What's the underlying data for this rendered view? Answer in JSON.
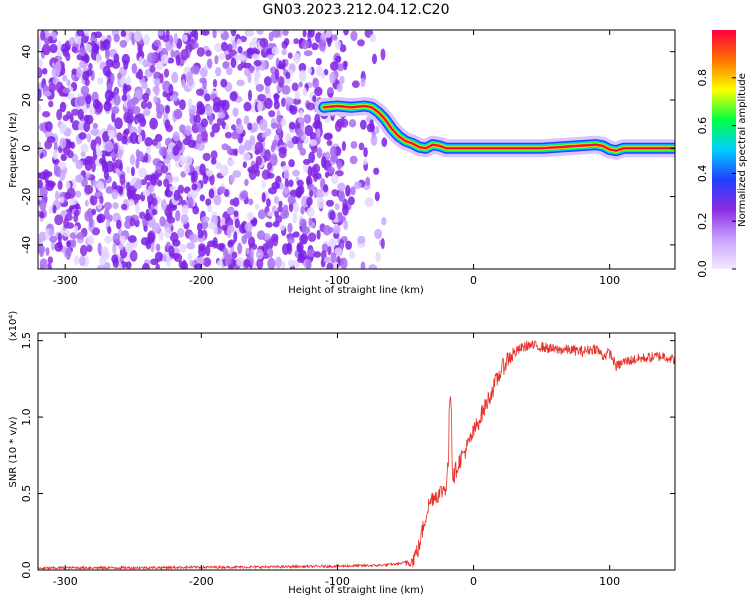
{
  "title": "GN03.2023.212.04.12.C20",
  "colors": {
    "snr_line": "#e8302a",
    "axes": "#000000"
  },
  "chart_data": [
    {
      "type": "heatmap",
      "xlabel": "Height of straight line (km)",
      "ylabel": "Frequency (Hz)",
      "xlim": [
        -320,
        148
      ],
      "ylim": [
        -50,
        49
      ],
      "xticks": [
        -300,
        -200,
        -100,
        0,
        100
      ],
      "yticks": [
        -40,
        -20,
        0,
        20,
        40
      ],
      "colorbar": {
        "label": "Normalized spectral amplitude",
        "range": [
          0.0,
          1.0
        ],
        "ticks": [
          "0.0",
          "0.2",
          "0.4",
          "0.6",
          "0.8"
        ],
        "colormap": [
          "#f2eaff",
          "#c7a1ff",
          "#8a2be2",
          "#2040ff",
          "#00d0ff",
          "#00ff40",
          "#ffff00",
          "#ff7000",
          "#ff0040"
        ]
      },
      "noise_region_x": [
        -320,
        -70
      ],
      "signal_trace": {
        "x": [
          -110,
          -100,
          -90,
          -80,
          -75,
          -70,
          -65,
          -60,
          -55,
          -50,
          -45,
          -40,
          -35,
          -30,
          -25,
          -20,
          0,
          50,
          90,
          95,
          100,
          105,
          110,
          148
        ],
        "y": [
          17,
          17.5,
          17,
          17.5,
          17,
          15,
          12,
          8,
          5,
          3,
          2,
          0.5,
          0,
          1.5,
          1,
          0,
          0,
          0,
          1.5,
          1,
          -0.5,
          -1,
          0,
          0
        ]
      }
    },
    {
      "type": "line",
      "xlabel": "Height of straight line (km)",
      "ylabel": "SNR (10 * v/v)",
      "y_multiplier": "(x10⁴)",
      "xlim": [
        -320,
        148
      ],
      "ylim": [
        0,
        1.55
      ],
      "xticks": [
        -300,
        -200,
        -100,
        0,
        100
      ],
      "yticks": [
        "0.0",
        "0.5",
        "1.0",
        "1.5"
      ],
      "series": [
        {
          "x": [
            -320,
            -300,
            -250,
            -200,
            -150,
            -100,
            -70,
            -55,
            -45,
            -40,
            -37,
            -34,
            -30,
            -25,
            -20,
            -17,
            -15,
            -12,
            -10,
            -5,
            0,
            5,
            10,
            15,
            20,
            25,
            30,
            35,
            40,
            50,
            60,
            70,
            80,
            90,
            95,
            100,
            105,
            110,
            120,
            130,
            140,
            148
          ],
          "y": [
            0.01,
            0.015,
            0.015,
            0.018,
            0.02,
            0.025,
            0.03,
            0.04,
            0.06,
            0.15,
            0.28,
            0.4,
            0.48,
            0.5,
            0.55,
            0.9,
            0.6,
            0.68,
            0.72,
            0.8,
            0.9,
            1.0,
            1.1,
            1.2,
            1.3,
            1.38,
            1.42,
            1.45,
            1.47,
            1.46,
            1.44,
            1.44,
            1.43,
            1.45,
            1.4,
            1.42,
            1.33,
            1.36,
            1.38,
            1.39,
            1.4,
            1.37
          ]
        }
      ]
    }
  ]
}
